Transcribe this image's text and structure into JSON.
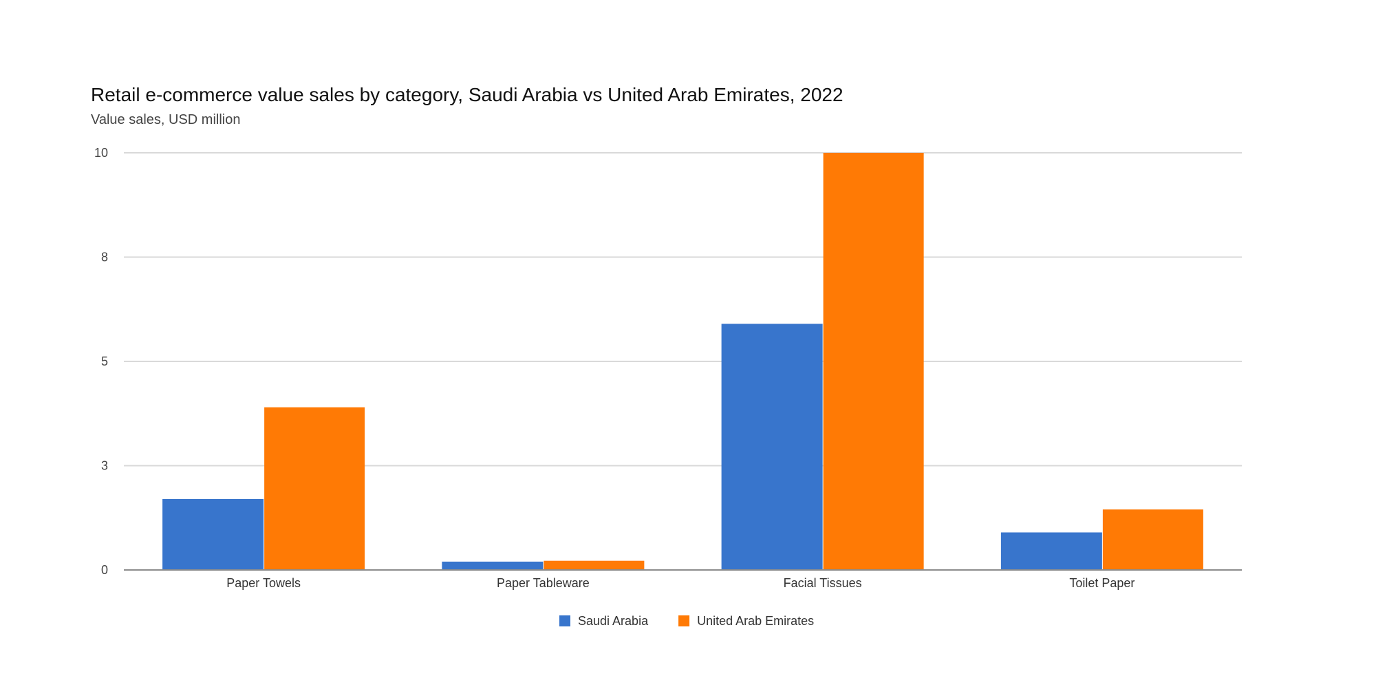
{
  "chart_data": {
    "type": "bar",
    "title": "Retail e-commerce value sales by category, Saudi Arabia vs United Arab Emirates, 2022",
    "subtitle": "Value sales, USD million",
    "xlabel": "",
    "ylabel": "",
    "categories": [
      "Paper Towels",
      "Paper Tableware",
      "Facial Tissues",
      "Toilet Paper"
    ],
    "series": [
      {
        "name": "Saudi Arabia",
        "color": "#3875cc",
        "values": [
          1.7,
          0.2,
          5.9,
          0.9
        ]
      },
      {
        "name": "United Arab Emirates",
        "color": "#ff7a05",
        "values": [
          3.9,
          0.22,
          10.0,
          1.45
        ]
      }
    ],
    "ylim": [
      0,
      10
    ],
    "yticks": [
      0,
      2.5,
      5,
      7.5,
      10
    ],
    "ytick_labels": [
      "0",
      "3",
      "5",
      "8",
      "10"
    ],
    "grid": true,
    "legend_position": "bottom-center"
  }
}
